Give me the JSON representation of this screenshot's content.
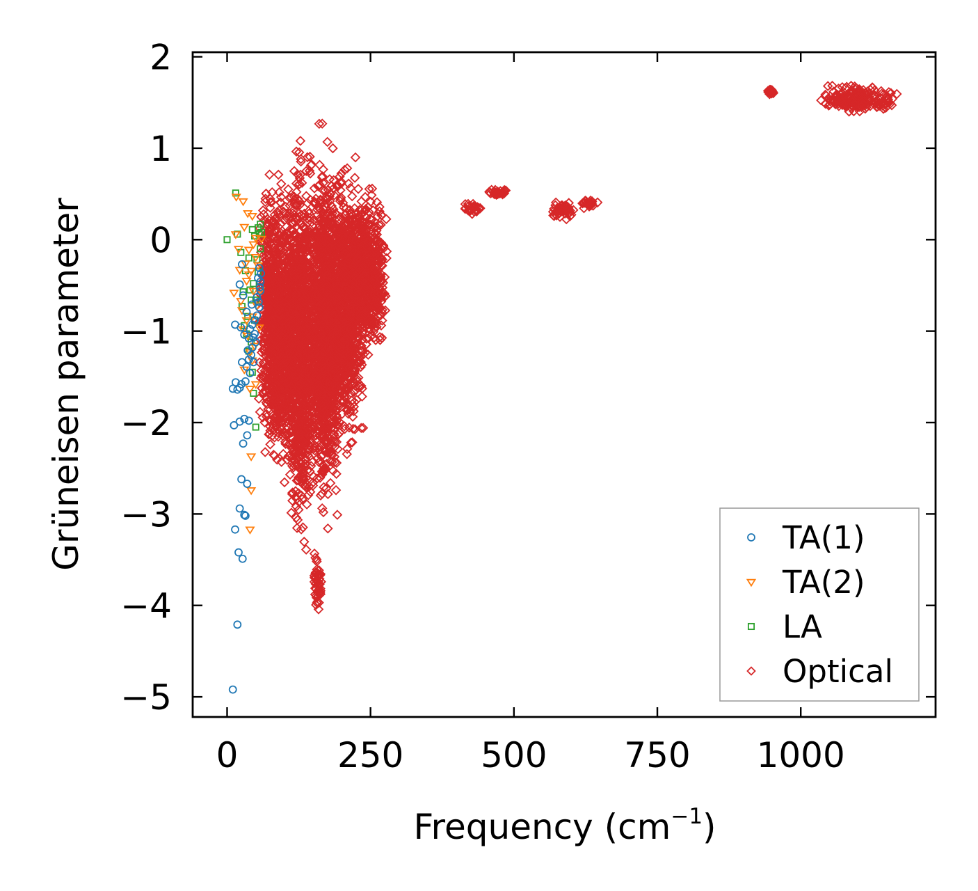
{
  "chart_data": {
    "type": "scatter",
    "title": "",
    "xlabel": "Frequency (cm",
    "xlabel_sup": "−1",
    "xlabel_end": ")",
    "ylabel": "Grüneisen parameter",
    "xlim": [
      -60,
      1235
    ],
    "ylim": [
      -5.22,
      2.05
    ],
    "xticks": [
      0,
      250,
      500,
      750,
      1000
    ],
    "xtick_labels": [
      "0",
      "250",
      "500",
      "750",
      "1000"
    ],
    "yticks": [
      2,
      1,
      0,
      -1,
      -2,
      -3,
      -4,
      -5
    ],
    "ytick_labels": [
      "2",
      "1",
      "0",
      "−1",
      "−2",
      "−3",
      "−4",
      "−5"
    ],
    "grid": false,
    "legend_position": "bottom-right",
    "series": [
      {
        "name": "TA(1)",
        "marker": "circle",
        "color": "#1f77b4",
        "points": [
          [
            10,
            -4.92
          ],
          [
            18,
            -4.21
          ],
          [
            20,
            -3.42
          ],
          [
            27,
            -3.49
          ],
          [
            14,
            -3.17
          ],
          [
            22,
            -2.94
          ],
          [
            30,
            -3.01
          ],
          [
            32,
            -3.02
          ],
          [
            25,
            -2.62
          ],
          [
            35,
            -2.67
          ],
          [
            12,
            -2.03
          ],
          [
            22,
            -1.99
          ],
          [
            30,
            -1.96
          ],
          [
            38,
            -1.98
          ],
          [
            28,
            -2.23
          ],
          [
            35,
            -2.14
          ],
          [
            10,
            -1.63
          ],
          [
            18,
            -1.64
          ],
          [
            22,
            -1.62
          ],
          [
            15,
            -1.56
          ],
          [
            25,
            -1.58
          ],
          [
            32,
            -1.55
          ],
          [
            26,
            -1.34
          ],
          [
            34,
            -1.39
          ],
          [
            14,
            -0.93
          ],
          [
            24,
            -0.96
          ],
          [
            30,
            -1.04
          ],
          [
            38,
            -1.08
          ],
          [
            22,
            -0.49
          ],
          [
            26,
            -0.27
          ],
          [
            28,
            -0.61
          ],
          [
            34,
            -0.79
          ],
          [
            40,
            -0.98
          ],
          [
            44,
            -1.18
          ],
          [
            46,
            -1.34
          ],
          [
            48,
            -0.88
          ],
          [
            52,
            -0.63
          ],
          [
            54,
            -0.42
          ],
          [
            56,
            -0.31
          ],
          [
            58,
            -0.56
          ],
          [
            42,
            -1.26
          ],
          [
            50,
            -1.12
          ],
          [
            56,
            -0.74
          ],
          [
            58,
            -0.46
          ],
          [
            36,
            -1.21
          ],
          [
            40,
            -1.46
          ],
          [
            44,
            -0.93
          ],
          [
            48,
            -1.03
          ],
          [
            52,
            -0.83
          ],
          [
            55,
            -0.68
          ],
          [
            57,
            -0.52
          ],
          [
            59,
            -0.37
          ],
          [
            46,
            -1.07
          ],
          [
            38,
            -1.31
          ],
          [
            43,
            -0.71
          ]
        ]
      },
      {
        "name": "TA(2)",
        "marker": "triangle-down",
        "color": "#ff7f0e",
        "points": [
          [
            16,
            0.47
          ],
          [
            28,
            0.42
          ],
          [
            36,
            0.29
          ],
          [
            44,
            0.26
          ],
          [
            15,
            0.06
          ],
          [
            30,
            0.14
          ],
          [
            50,
            0.02
          ],
          [
            60,
            0.01
          ],
          [
            20,
            -0.1
          ],
          [
            38,
            -0.11
          ],
          [
            46,
            -0.05
          ],
          [
            12,
            -0.58
          ],
          [
            24,
            -0.67
          ],
          [
            34,
            -0.45
          ],
          [
            42,
            -0.34
          ],
          [
            50,
            -0.19
          ],
          [
            28,
            -0.98
          ],
          [
            36,
            -1.05
          ],
          [
            44,
            -0.84
          ],
          [
            52,
            -0.72
          ],
          [
            58,
            -0.55
          ],
          [
            30,
            -1.42
          ],
          [
            40,
            -1.23
          ],
          [
            48,
            -1.16
          ],
          [
            40,
            -1.63
          ],
          [
            50,
            -1.58
          ],
          [
            42,
            -2.37
          ],
          [
            42,
            -2.74
          ],
          [
            40,
            -3.17
          ],
          [
            32,
            -0.26
          ],
          [
            38,
            -0.38
          ],
          [
            46,
            -0.56
          ],
          [
            54,
            -0.28
          ],
          [
            26,
            -0.77
          ],
          [
            34,
            -0.88
          ],
          [
            44,
            -1.32
          ],
          [
            56,
            -0.96
          ],
          [
            22,
            -0.33
          ]
        ]
      },
      {
        "name": "LA",
        "marker": "square",
        "color": "#2ca02c",
        "points": [
          [
            0,
            0
          ],
          [
            15,
            0.51
          ],
          [
            18,
            0.06
          ],
          [
            24,
            -0.14
          ],
          [
            28,
            -0.57
          ],
          [
            32,
            -0.34
          ],
          [
            38,
            -0.2
          ],
          [
            44,
            0.11
          ],
          [
            48,
            0.04
          ],
          [
            54,
            0.13
          ],
          [
            58,
            0.17
          ],
          [
            60,
            0.08
          ],
          [
            26,
            -0.73
          ],
          [
            30,
            -0.94
          ],
          [
            36,
            -0.84
          ],
          [
            42,
            -0.66
          ],
          [
            46,
            -0.48
          ],
          [
            52,
            -0.22
          ],
          [
            56,
            0.06
          ],
          [
            38,
            -1.22
          ],
          [
            44,
            -1.45
          ],
          [
            46,
            -1.68
          ],
          [
            50,
            -2.05
          ],
          [
            34,
            -1.03
          ],
          [
            40,
            -0.55
          ],
          [
            48,
            -0.88
          ],
          [
            54,
            -0.35
          ],
          [
            58,
            -0.1
          ],
          [
            42,
            -1.12
          ],
          [
            50,
            -0.66
          ]
        ]
      },
      {
        "name": "Optical",
        "marker": "diamond",
        "color": "#d62728",
        "clusters": [
          {
            "x": [
              55,
              95
            ],
            "y": [
              -2.6,
              0.85
            ]
          },
          {
            "x": [
              75,
              125
            ],
            "y": [
              -2.85,
              0.9
            ]
          },
          {
            "x": [
              105,
              155
            ],
            "y": [
              -3.65,
              1.35
            ]
          },
          {
            "x": [
              140,
              195
            ],
            "y": [
              -3.3,
              1.35
            ]
          },
          {
            "x": [
              150,
              165
            ],
            "y": [
              -4.15,
              -3.3
            ]
          },
          {
            "x": [
              160,
              240
            ],
            "y": [
              -2.6,
              1.0
            ]
          },
          {
            "x": [
              200,
              280
            ],
            "y": [
              -1.5,
              0.75
            ]
          },
          {
            "x": [
              410,
              450
            ],
            "y": [
              0.25,
              0.42
            ]
          },
          {
            "x": [
              455,
              495
            ],
            "y": [
              0.46,
              0.57
            ]
          },
          {
            "x": [
              560,
              610
            ],
            "y": [
              0.2,
              0.45
            ]
          },
          {
            "x": [
              615,
              650
            ],
            "y": [
              0.32,
              0.45
            ]
          },
          {
            "x": [
              940,
              955
            ],
            "y": [
              1.58,
              1.65
            ]
          },
          {
            "x": [
              1030,
              1175
            ],
            "y": [
              1.36,
              1.72
            ]
          }
        ]
      }
    ],
    "legend": [
      {
        "label": "TA(1)",
        "marker": "circle",
        "color": "#1f77b4"
      },
      {
        "label": "TA(2)",
        "marker": "triangle-down",
        "color": "#ff7f0e"
      },
      {
        "label": "LA",
        "marker": "square",
        "color": "#2ca02c"
      },
      {
        "label": "Optical",
        "marker": "diamond",
        "color": "#d62728"
      }
    ]
  }
}
